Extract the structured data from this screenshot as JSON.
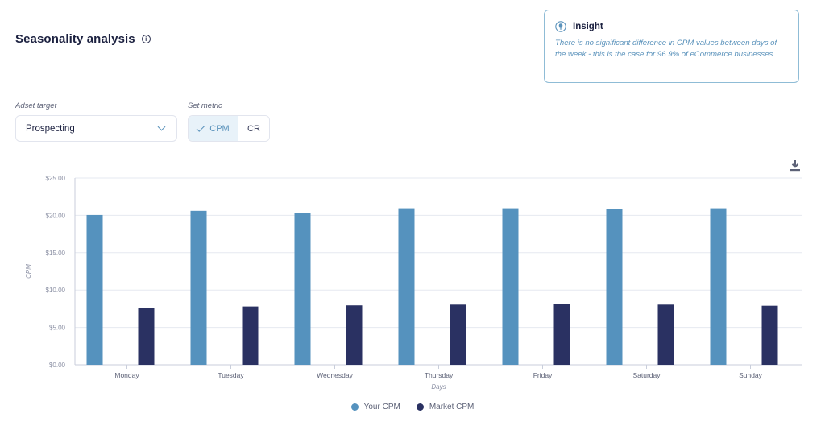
{
  "header": {
    "title": "Seasonality analysis"
  },
  "insight": {
    "title": "Insight",
    "text": "There is no significant difference in CPM values between days of the week - this is the case for 96.9% of eCommerce businesses."
  },
  "controls": {
    "adset_label": "Adset target",
    "adset_value": "Prospecting",
    "metric_label": "Set metric",
    "metric_options": [
      "CPM",
      "CR"
    ],
    "metric_selected": "CPM"
  },
  "colors": {
    "your_cpm": "#5592be",
    "market_cpm": "#2a3162",
    "accent": "#5a92bb"
  },
  "chart_data": {
    "type": "bar",
    "categories": [
      "Monday",
      "Tuesday",
      "Wednesday",
      "Thursday",
      "Friday",
      "Saturday",
      "Sunday"
    ],
    "series": [
      {
        "name": "Your CPM",
        "values": [
          20.05,
          20.6,
          20.3,
          20.95,
          20.95,
          20.85,
          20.95
        ]
      },
      {
        "name": "Market CPM",
        "values": [
          7.6,
          7.8,
          7.95,
          8.05,
          8.15,
          8.05,
          7.9
        ]
      }
    ],
    "xlabel": "Days",
    "ylabel": "CPM",
    "ylim": [
      0,
      25
    ],
    "yticks": [
      "$0.00",
      "$5.00",
      "$10.00",
      "$15.00",
      "$20.00",
      "$25.00"
    ],
    "grid": true,
    "legend": "bottom-center"
  }
}
